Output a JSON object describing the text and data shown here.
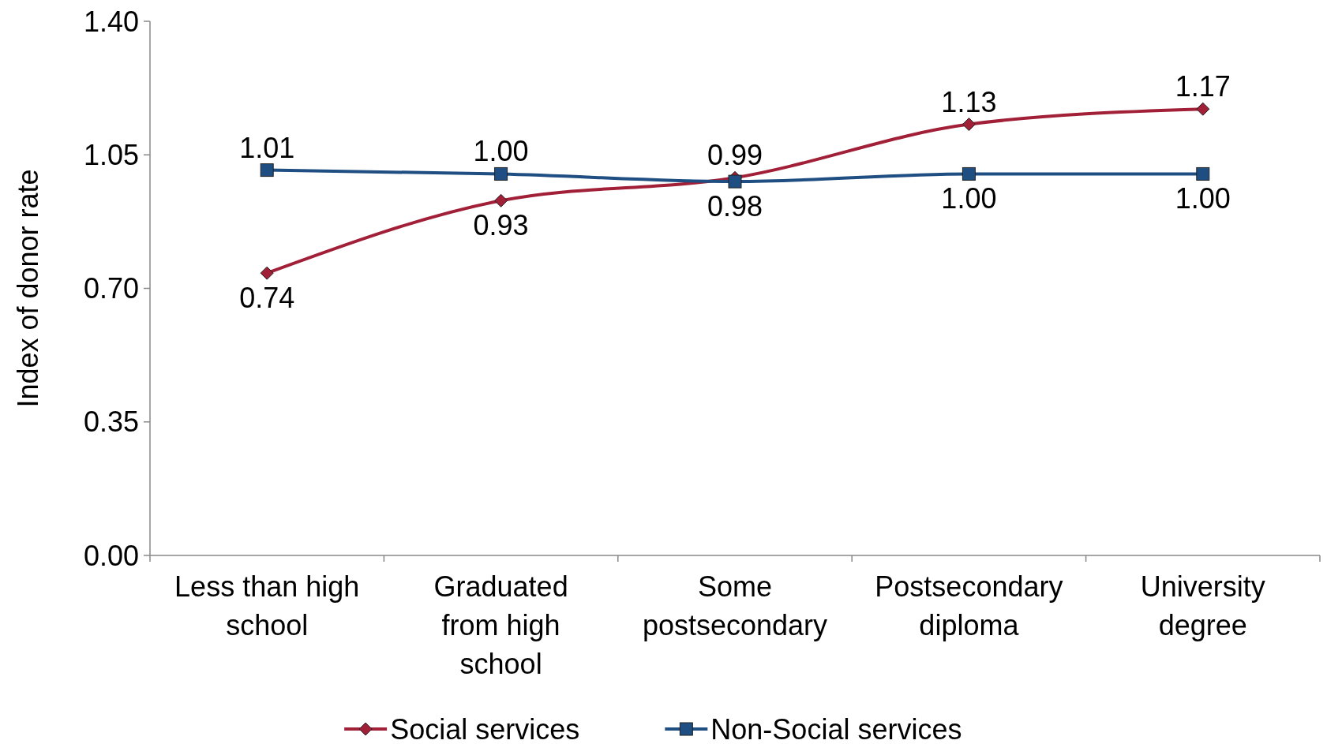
{
  "chart_data": {
    "type": "line",
    "ylabel": "Index of donor rate",
    "categories": [
      "Less than high\nschool",
      "Graduated\nfrom high\nschool",
      "Some\npostsecondary",
      "Postsecondary\ndiploma",
      "University\ndegree"
    ],
    "series": [
      {
        "name": "Social services",
        "color": "#a21f38",
        "marker": "diamond",
        "values": [
          0.74,
          0.93,
          0.99,
          1.13,
          1.17
        ],
        "value_labels": [
          "0.74",
          "0.93",
          "0.99",
          "1.13",
          "1.17"
        ]
      },
      {
        "name": "Non-Social services",
        "color": "#1f4e82",
        "marker": "square",
        "values": [
          1.01,
          1.0,
          0.98,
          1.0,
          1.0
        ],
        "value_labels": [
          "1.01",
          "1.00",
          "0.98",
          "1.00",
          "1.00"
        ]
      }
    ],
    "ylim": [
      0,
      1.4
    ],
    "yticks": [
      {
        "value": 0,
        "label": "0.00"
      },
      {
        "value": 0.35,
        "label": "0.35"
      },
      {
        "value": 0.7,
        "label": "0.70"
      },
      {
        "value": 1.05,
        "label": "1.05"
      },
      {
        "value": 1.4,
        "label": "1.40"
      }
    ],
    "legend": "bottom",
    "grid": false
  }
}
